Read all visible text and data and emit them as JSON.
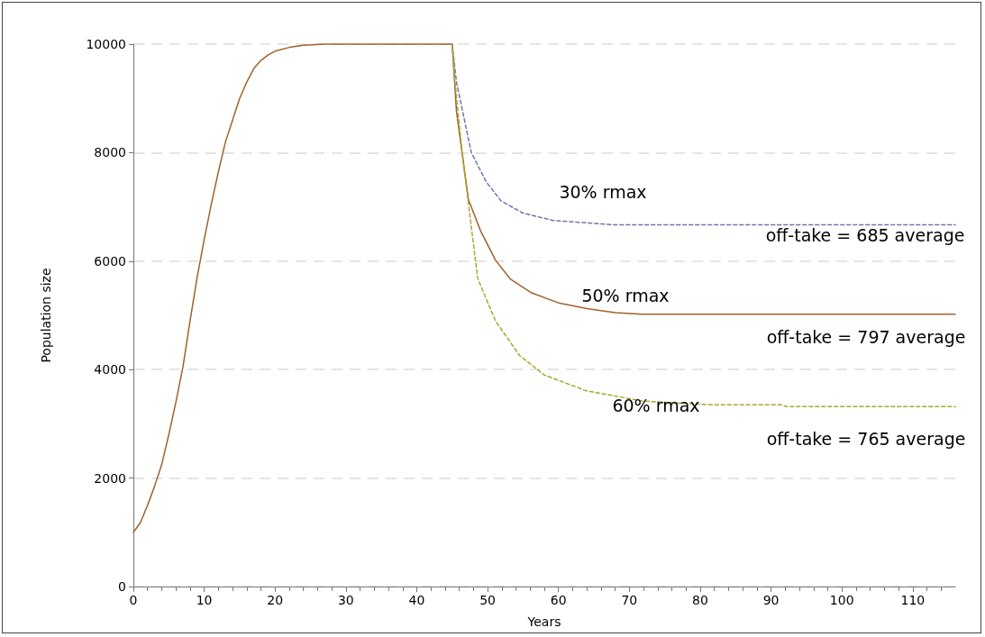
{
  "chart_data": {
    "type": "line",
    "xlabel": "Years",
    "ylabel": "Population size",
    "xlim": [
      0,
      116
    ],
    "xticks": [
      0,
      10,
      20,
      30,
      40,
      50,
      60,
      70,
      80,
      90,
      100,
      110
    ],
    "ylim": [
      0,
      10000
    ],
    "yticks": [
      0,
      2000,
      4000,
      6000,
      8000,
      10000
    ],
    "grid": "y",
    "marker": "none",
    "series": [
      {
        "color": "#a0622d",
        "line_style": "solid",
        "x": [
          0,
          1,
          2,
          3,
          4,
          5,
          6,
          7,
          8,
          9,
          10,
          11,
          12,
          13,
          14,
          15,
          16,
          17,
          18,
          19,
          20,
          22,
          24,
          27,
          45,
          45.6,
          47.3,
          49,
          51.1,
          53.2,
          56.1,
          60,
          64.2,
          68,
          71.8,
          116
        ],
        "values": [
          1000,
          1180,
          1500,
          1850,
          2250,
          2800,
          3400,
          4050,
          4900,
          5700,
          6400,
          7050,
          7650,
          8200,
          8600,
          9000,
          9300,
          9550,
          9700,
          9800,
          9870,
          9940,
          9980,
          10000,
          10000,
          8760,
          7130,
          6560,
          6020,
          5670,
          5420,
          5230,
          5120,
          5050,
          5020,
          5020
        ]
      },
      {
        "color": "#7474b0",
        "line_style": "dashed",
        "x": [
          45,
          45.6,
          47.7,
          49.8,
          51.9,
          54.9,
          59.2,
          67.6,
          116
        ],
        "values": [
          10000,
          9300,
          8000,
          7460,
          7110,
          6890,
          6750,
          6670,
          6670
        ]
      },
      {
        "color": "#a8a830",
        "line_style": "dashed",
        "x": [
          45,
          45.4,
          46.4,
          48.6,
          51.1,
          54.5,
          58,
          63.9,
          71.9,
          81.7,
          91.6,
          92.1,
          116
        ],
        "values": [
          10000,
          9300,
          8000,
          5680,
          4900,
          4260,
          3900,
          3610,
          3420,
          3350,
          3350,
          3320,
          3320
        ]
      }
    ],
    "annotations": [
      "30% rmax",
      "off-take = 685 average",
      "50% rmax",
      "off-take = 797 average",
      "60% rmax",
      "off-take = 765 average"
    ]
  }
}
